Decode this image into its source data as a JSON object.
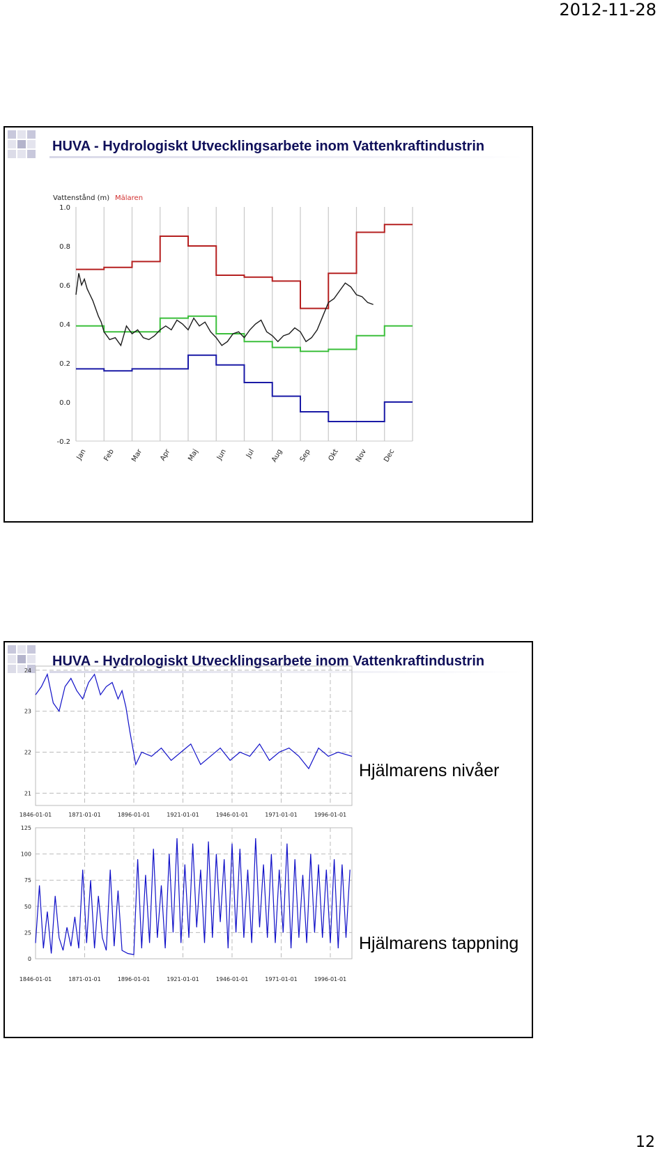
{
  "page": {
    "date": "2012-11-28",
    "page_number": "12"
  },
  "slides": [
    {
      "title": "HUVA - Hydrologiskt Utvecklingsarbete inom Vattenkraftindustrin"
    },
    {
      "title": "HUVA - Hydrologiskt Utvecklingsarbete inom Vattenkraftindustrin",
      "label_nivaer": "Hjälmarens nivåer",
      "label_tappning": "Hjälmarens tappning"
    }
  ],
  "colors": {
    "red": "#b52020",
    "green": "#3bbf3b",
    "blue": "#1a1aa6",
    "black": "#1a1a1a",
    "series_blue": "#1010c8",
    "title": "#10105a"
  },
  "chart_data": [
    {
      "type": "line",
      "ylabel": "Vattenstånd (m)",
      "legend": "Mälaren",
      "categories": [
        "Jan",
        "Feb",
        "Mar",
        "Apr",
        "Maj",
        "Jun",
        "Jul",
        "Aug",
        "Sep",
        "Okt",
        "Nov",
        "Dec"
      ],
      "ylim": [
        -0.2,
        1.0
      ],
      "yticks": [
        "1.0",
        "0.8",
        "0.6",
        "0.4",
        "0.2",
        "0.0",
        "-0.2"
      ],
      "grid": true,
      "series": [
        {
          "name": "",
          "color_key": "red",
          "step": true,
          "values": [
            0.68,
            0.69,
            0.72,
            0.85,
            0.8,
            0.65,
            0.64,
            0.62,
            0.48,
            0.66,
            0.87,
            0.91
          ]
        },
        {
          "name": "",
          "color_key": "green",
          "step": true,
          "values": [
            0.39,
            0.36,
            0.36,
            0.43,
            0.44,
            0.35,
            0.31,
            0.28,
            0.26,
            0.27,
            0.34,
            0.39
          ]
        },
        {
          "name": "",
          "color_key": "blue",
          "step": true,
          "values": [
            0.17,
            0.16,
            0.17,
            0.17,
            0.24,
            0.19,
            0.1,
            0.03,
            -0.05,
            -0.1,
            -0.1,
            0.0
          ]
        },
        {
          "name": "",
          "color_key": "black",
          "step": false,
          "x": [
            0.0,
            0.1,
            0.2,
            0.3,
            0.4,
            0.5,
            0.6,
            0.7,
            0.8,
            0.9,
            1.0,
            1.2,
            1.4,
            1.6,
            1.8,
            2.0,
            2.2,
            2.4,
            2.6,
            2.8,
            3.0,
            3.2,
            3.4,
            3.6,
            3.8,
            4.0,
            4.2,
            4.4,
            4.6,
            4.8,
            5.0,
            5.2,
            5.4,
            5.6,
            5.8,
            6.0,
            6.2,
            6.4,
            6.6,
            6.8,
            7.0,
            7.2,
            7.4,
            7.6,
            7.8,
            8.0,
            8.2,
            8.4,
            8.6,
            8.8,
            9.0,
            9.2,
            9.4,
            9.6,
            9.8,
            10.0,
            10.2,
            10.4,
            10.6
          ],
          "values": [
            0.55,
            0.66,
            0.6,
            0.63,
            0.58,
            0.55,
            0.52,
            0.48,
            0.44,
            0.41,
            0.36,
            0.32,
            0.33,
            0.29,
            0.39,
            0.35,
            0.37,
            0.33,
            0.32,
            0.34,
            0.37,
            0.39,
            0.37,
            0.42,
            0.4,
            0.37,
            0.43,
            0.39,
            0.41,
            0.36,
            0.33,
            0.29,
            0.31,
            0.35,
            0.36,
            0.33,
            0.37,
            0.4,
            0.42,
            0.36,
            0.34,
            0.31,
            0.34,
            0.35,
            0.38,
            0.36,
            0.31,
            0.33,
            0.37,
            0.44,
            0.51,
            0.53,
            0.57,
            0.61,
            0.59,
            0.55,
            0.54,
            0.51,
            0.5
          ]
        }
      ]
    },
    {
      "type": "line",
      "title": "Hjälmarens nivåer",
      "ylim": [
        20.7,
        24.1
      ],
      "yticks": [
        "21",
        "22",
        "23",
        "24"
      ],
      "xticks": [
        "1846-01-01",
        "1871-01-01",
        "1896-01-01",
        "1921-01-01",
        "1946-01-01",
        "1971-01-01",
        "1996-01-01"
      ],
      "xlim": [
        1846,
        2007
      ],
      "grid": true,
      "series": [
        {
          "name": "",
          "color_key": "series_blue",
          "x": [
            1846,
            1849,
            1852,
            1855,
            1858,
            1861,
            1864,
            1867,
            1870,
            1873,
            1876,
            1879,
            1882,
            1885,
            1888,
            1890,
            1892,
            1894,
            1897,
            1900,
            1905,
            1910,
            1915,
            1920,
            1925,
            1930,
            1935,
            1940,
            1945,
            1950,
            1955,
            1960,
            1965,
            1970,
            1975,
            1980,
            1985,
            1990,
            1995,
            2000,
            2007
          ],
          "values": [
            23.4,
            23.6,
            23.9,
            23.2,
            23.0,
            23.6,
            23.8,
            23.5,
            23.3,
            23.7,
            23.9,
            23.4,
            23.6,
            23.7,
            23.3,
            23.5,
            23.1,
            22.5,
            21.7,
            22.0,
            21.9,
            22.1,
            21.8,
            22.0,
            22.2,
            21.7,
            21.9,
            22.1,
            21.8,
            22.0,
            21.9,
            22.2,
            21.8,
            22.0,
            22.1,
            21.9,
            21.6,
            22.1,
            21.9,
            22.0,
            21.9
          ]
        }
      ]
    },
    {
      "type": "line",
      "title": "Hjälmarens tappning",
      "ylim": [
        0,
        125
      ],
      "yticks": [
        "0",
        "25",
        "50",
        "75",
        "100",
        "125"
      ],
      "xticks": [
        "1846-01-01",
        "1871-01-01",
        "1896-01-01",
        "1921-01-01",
        "1946-01-01",
        "1971-01-01",
        "1996-01-01"
      ],
      "xlim": [
        1846,
        2007
      ],
      "grid": true,
      "series": [
        {
          "name": "",
          "color_key": "series_blue",
          "x": [
            1846,
            1848,
            1850,
            1852,
            1854,
            1856,
            1858,
            1860,
            1862,
            1864,
            1866,
            1868,
            1870,
            1872,
            1874,
            1876,
            1878,
            1880,
            1882,
            1884,
            1886,
            1888,
            1890,
            1893,
            1896,
            1898,
            1900,
            1902,
            1904,
            1906,
            1908,
            1910,
            1912,
            1914,
            1916,
            1918,
            1920,
            1922,
            1924,
            1926,
            1928,
            1930,
            1932,
            1934,
            1936,
            1938,
            1940,
            1942,
            1944,
            1946,
            1948,
            1950,
            1952,
            1954,
            1956,
            1958,
            1960,
            1962,
            1964,
            1966,
            1968,
            1970,
            1972,
            1974,
            1976,
            1978,
            1980,
            1982,
            1984,
            1986,
            1988,
            1990,
            1992,
            1994,
            1996,
            1998,
            2000,
            2002,
            2004,
            2006
          ],
          "values": [
            15,
            70,
            10,
            45,
            5,
            60,
            20,
            8,
            30,
            12,
            40,
            10,
            85,
            15,
            75,
            10,
            60,
            20,
            8,
            85,
            12,
            65,
            8,
            5,
            4,
            95,
            10,
            80,
            15,
            105,
            20,
            70,
            10,
            100,
            25,
            115,
            15,
            90,
            20,
            110,
            30,
            85,
            15,
            112,
            20,
            100,
            35,
            95,
            10,
            110,
            25,
            105,
            20,
            85,
            15,
            115,
            30,
            90,
            20,
            100,
            15,
            85,
            25,
            110,
            10,
            95,
            20,
            80,
            15,
            100,
            25,
            90,
            20,
            85,
            15,
            95,
            10,
            90,
            20,
            85
          ]
        }
      ]
    }
  ]
}
